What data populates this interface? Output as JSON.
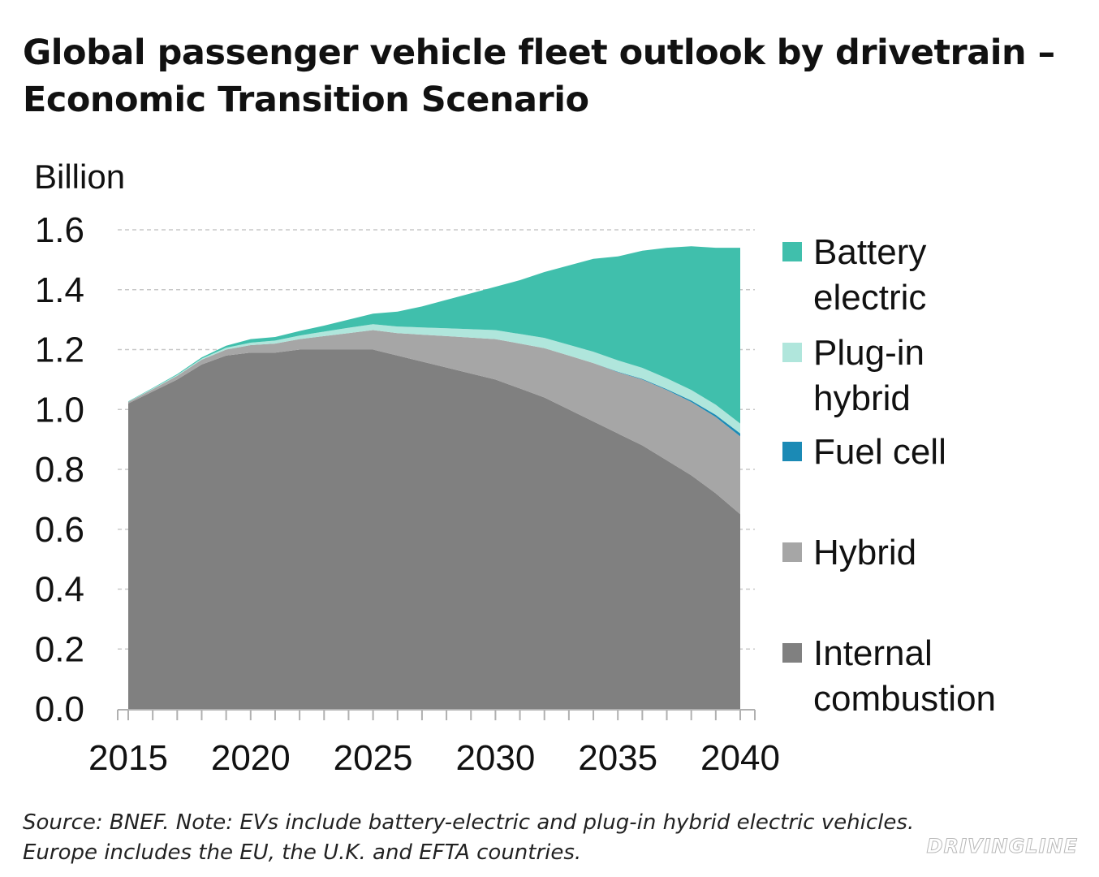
{
  "title": {
    "line1": "Global passenger vehicle fleet outlook by drivetrain –",
    "line2": "Economic Transition Scenario"
  },
  "unit_label": "Billion",
  "footnote": {
    "line1": "Source: BNEF. Note: EVs include battery-electric and plug-in hybrid electric vehicles.",
    "line2": "Europe includes the EU, the U.K. and EFTA countries."
  },
  "watermark": "DRIVINGLINE",
  "colors": {
    "internal_combustion": "#808080",
    "hybrid": "#a6a6a6",
    "fuel_cell": "#1b8ab5",
    "plug_in_hybrid": "#b0e6dc",
    "battery_electric": "#40bfac",
    "grid": "#c8c8c8",
    "axis": "#b0b0b0"
  },
  "chart_data": {
    "type": "area",
    "stacked": true,
    "title": "Global passenger vehicle fleet outlook by drivetrain – Economic Transition Scenario",
    "xlabel": "",
    "ylabel": "Billion",
    "xlim": [
      2015,
      2040
    ],
    "ylim": [
      0,
      1.6
    ],
    "grid": true,
    "legend_position": "right",
    "x_ticks": [
      "2015",
      "2020",
      "2025",
      "2030",
      "2035",
      "2040"
    ],
    "y_ticks": [
      "0.0",
      "0.2",
      "0.4",
      "0.6",
      "0.8",
      "1.0",
      "1.2",
      "1.4",
      "1.6"
    ],
    "x": [
      2015,
      2016,
      2017,
      2018,
      2019,
      2020,
      2021,
      2022,
      2023,
      2024,
      2025,
      2026,
      2027,
      2028,
      2029,
      2030,
      2031,
      2032,
      2033,
      2034,
      2035,
      2036,
      2037,
      2038,
      2039,
      2040
    ],
    "series": [
      {
        "name": "Internal combustion",
        "label_lines": [
          "Internal",
          "combustion"
        ],
        "color_key": "internal_combustion",
        "values": [
          1.02,
          1.06,
          1.1,
          1.15,
          1.18,
          1.19,
          1.19,
          1.2,
          1.2,
          1.2,
          1.2,
          1.18,
          1.16,
          1.14,
          1.12,
          1.1,
          1.07,
          1.04,
          1.0,
          0.96,
          0.92,
          0.88,
          0.83,
          0.78,
          0.72,
          0.65
        ]
      },
      {
        "name": "Hybrid",
        "label_lines": [
          "Hybrid"
        ],
        "color_key": "hybrid",
        "values": [
          0.005,
          0.008,
          0.012,
          0.016,
          0.02,
          0.025,
          0.03,
          0.035,
          0.045,
          0.055,
          0.065,
          0.075,
          0.09,
          0.105,
          0.12,
          0.135,
          0.15,
          0.165,
          0.18,
          0.195,
          0.205,
          0.22,
          0.235,
          0.245,
          0.255,
          0.26
        ]
      },
      {
        "name": "Fuel cell",
        "label_lines": [
          "Fuel cell"
        ],
        "color_key": "fuel_cell",
        "values": [
          0,
          0,
          0,
          0,
          0,
          0,
          0,
          0,
          0,
          0,
          0,
          0,
          0,
          0,
          0,
          0,
          0,
          0,
          0,
          0,
          0.001,
          0.002,
          0.003,
          0.005,
          0.007,
          0.01
        ]
      },
      {
        "name": "Plug-in hybrid",
        "label_lines": [
          "Plug-in",
          "hybrid"
        ],
        "color_key": "plug_in_hybrid",
        "values": [
          0.001,
          0.002,
          0.003,
          0.004,
          0.006,
          0.008,
          0.01,
          0.012,
          0.015,
          0.018,
          0.02,
          0.022,
          0.024,
          0.026,
          0.028,
          0.03,
          0.032,
          0.034,
          0.036,
          0.038,
          0.038,
          0.037,
          0.036,
          0.035,
          0.034,
          0.033
        ]
      },
      {
        "name": "Battery electric",
        "label_lines": [
          "Battery",
          "electric"
        ],
        "color_key": "battery_electric",
        "values": [
          0.001,
          0.002,
          0.003,
          0.004,
          0.007,
          0.012,
          0.012,
          0.015,
          0.02,
          0.027,
          0.035,
          0.05,
          0.07,
          0.095,
          0.12,
          0.145,
          0.18,
          0.22,
          0.265,
          0.31,
          0.347,
          0.391,
          0.436,
          0.48,
          0.524,
          0.587
        ]
      }
    ]
  }
}
